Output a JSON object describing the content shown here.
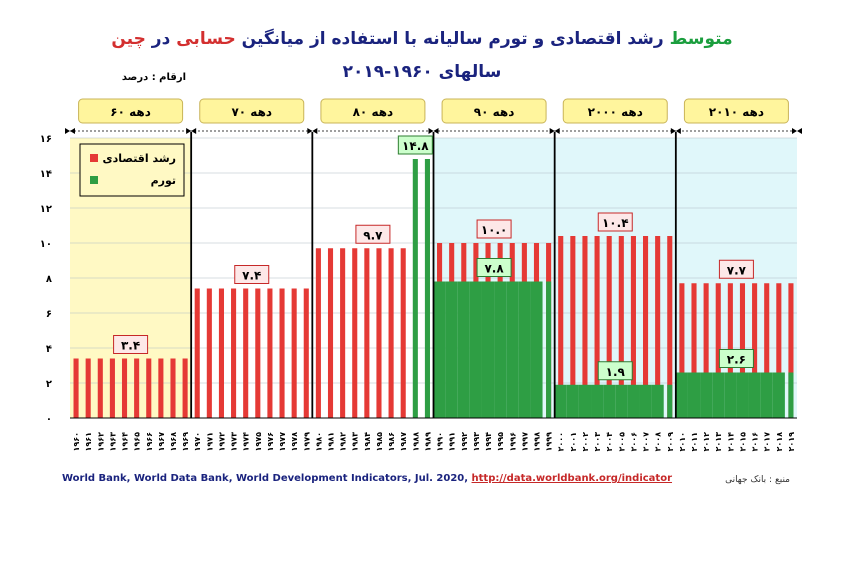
{
  "chart_data": {
    "type": "bar",
    "title_parts": [
      {
        "text": "متوسط",
        "color": "#1b9e3e"
      },
      {
        "text": " رشد اقتصادی و تورم سالیانه با استفاده از میانگین ",
        "color": "#1a237e"
      },
      {
        "text": "حسابی",
        "color": "#d32f2f"
      },
      {
        "text": " در ",
        "color": "#1a237e"
      },
      {
        "text": "چین",
        "color": "#d32f2f"
      }
    ],
    "subtitle": "سالهای ۱۹۶۰-۲۰۱۹",
    "units_note": "ارقام : درصد",
    "ylim": [
      0,
      16
    ],
    "yticks": [
      "۰",
      "۲",
      "۴",
      "۶",
      "۸",
      "۱۰",
      "۱۲",
      "۱۴",
      "۱۶"
    ],
    "legend": {
      "placement": "top-left",
      "items": [
        {
          "label": "رشد اقتصادی",
          "color": "#e53935"
        },
        {
          "label": "تورم",
          "color": "#2e9e44"
        }
      ]
    },
    "decades": [
      {
        "label": "دهه ۶۰",
        "years": [
          "۱۹۶۰",
          "۱۹۶۱",
          "۱۹۶۲",
          "۱۹۶۳",
          "۱۹۶۴",
          "۱۹۶۵",
          "۱۹۶۶",
          "۱۹۶۷",
          "۱۹۶۸",
          "۱۹۶۹"
        ],
        "growth": 3.4,
        "inflation": null,
        "growth_label": "۳.۴",
        "inflation_label": "",
        "bg": "#fff9c4"
      },
      {
        "label": "دهه ۷۰",
        "years": [
          "۱۹۷۰",
          "۱۹۷۱",
          "۱۹۷۲",
          "۱۹۷۳",
          "۱۹۷۴",
          "۱۹۷۵",
          "۱۹۷۶",
          "۱۹۷۷",
          "۱۹۷۸",
          "۱۹۷۹"
        ],
        "growth": 7.4,
        "inflation": null,
        "growth_label": "۷.۴",
        "inflation_label": "",
        "bg": "#ffffff"
      },
      {
        "label": "دهه ۸۰",
        "years": [
          "۱۹۸۰",
          "۱۹۸۱",
          "۱۹۸۲",
          "۱۹۸۳",
          "۱۹۸۴",
          "۱۹۸۵",
          "۱۹۸۶",
          "۱۹۸۷",
          "۱۹۸۸",
          "۱۹۸۹"
        ],
        "growth": 9.7,
        "inflation": 14.8,
        "growth_label": "۹.۷",
        "inflation_label": "۱۴.۸",
        "bg": "#ffffff"
      },
      {
        "label": "دهه ۹۰",
        "years": [
          "۱۹۹۰",
          "۱۹۹۱",
          "۱۹۹۲",
          "۱۹۹۳",
          "۱۹۹۴",
          "۱۹۹۵",
          "۱۹۹۶",
          "۱۹۹۷",
          "۱۹۹۸",
          "۱۹۹۹"
        ],
        "growth": 10.0,
        "inflation": 7.8,
        "growth_label": "۱۰.۰",
        "inflation_label": "۷.۸",
        "bg": "#e0f7fa"
      },
      {
        "label": "دهه ۲۰۰۰",
        "years": [
          "۲۰۰۰",
          "۲۰۰۱",
          "۲۰۰۲",
          "۲۰۰۳",
          "۲۰۰۴",
          "۲۰۰۵",
          "۲۰۰۶",
          "۲۰۰۷",
          "۲۰۰۸",
          "۲۰۰۹"
        ],
        "growth": 10.4,
        "inflation": 1.9,
        "growth_label": "۱۰.۴",
        "inflation_label": "۱.۹",
        "bg": "#e0f7fa"
      },
      {
        "label": "دهه ۲۰۱۰",
        "years": [
          "۲۰۱۰",
          "۲۰۱۱",
          "۲۰۱۲",
          "۲۰۱۳",
          "۲۰۱۴",
          "۲۰۱۵",
          "۲۰۱۶",
          "۲۰۱۷",
          "۲۰۱۸",
          "۲۰۱۹"
        ],
        "growth": 7.7,
        "inflation": 2.6,
        "growth_label": "۷.۷",
        "inflation_label": "۲.۶",
        "bg": "#e0f7fa"
      }
    ],
    "source_text": "World Bank, World Data Bank, World Development Indicators, Jul. 2020, ",
    "source_link": "http://data.worldbank.org/indicator",
    "source_label": "منبع : بانک جهانی"
  }
}
